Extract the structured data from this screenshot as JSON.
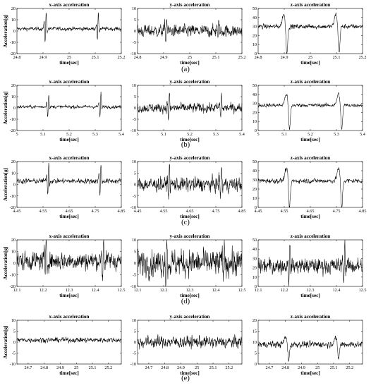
{
  "chart_data": [
    {
      "row": "(a)",
      "panels": [
        {
          "type": "line",
          "title": "x-axis acceleration",
          "xlabel": "time[sec]",
          "ylabel": "Acceleration[g]",
          "xlim": [
            24.8,
            25.2
          ],
          "ylim": [
            -20,
            20
          ],
          "xticks": [
            "24.8",
            "24.9",
            "25",
            "25.1",
            "25.2"
          ],
          "yticks": [
            "-20",
            "-10",
            "0",
            "10",
            "20"
          ],
          "series": [
            {
              "baseline": 2,
              "noise": 1.6,
              "events": [
                {
                  "x": 24.91,
                  "amp": 14
                },
                {
                  "x": 25.11,
                  "amp": 13
                }
              ]
            }
          ]
        },
        {
          "type": "line",
          "title": "y-axis acceleration",
          "xlabel": "time[sec]",
          "ylabel": "",
          "xlim": [
            24.8,
            25.2
          ],
          "ylim": [
            -10,
            10
          ],
          "xticks": [
            "24.8",
            "24.9",
            "25",
            "25.1",
            "25.2"
          ],
          "yticks": [
            "-10",
            "-5",
            "0",
            "5",
            "10"
          ],
          "series": [
            {
              "baseline": 0,
              "noise": 2.6,
              "events": [
                {
                  "x": 24.91,
                  "amp": 6
                },
                {
                  "x": 25.11,
                  "amp": 6
                }
              ]
            }
          ]
        },
        {
          "type": "line",
          "title": "z-axis acceleration",
          "xlabel": "time[sec]",
          "ylabel": "",
          "xlim": [
            24.8,
            25.2
          ],
          "ylim": [
            0,
            50
          ],
          "xticks": [
            "24.8",
            "24.9",
            "25",
            "25.1",
            "25.2"
          ],
          "yticks": [
            "0",
            "10",
            "20",
            "30",
            "40",
            "50"
          ],
          "series": [
            {
              "baseline": 30,
              "noise": 2.5,
              "events": [
                {
                  "x": 24.91,
                  "amp": 30,
                  "dip": true
                },
                {
                  "x": 25.11,
                  "amp": 30,
                  "dip": true
                }
              ]
            }
          ]
        }
      ]
    },
    {
      "row": "(b)",
      "panels": [
        {
          "type": "line",
          "title": "x-axis acceleration",
          "xlabel": "time[sec]",
          "ylabel": "Acceleration[g]",
          "xlim": [
            5,
            5.4
          ],
          "ylim": [
            -20,
            20
          ],
          "xticks": [
            "5",
            "5.1",
            "5.2",
            "5.3",
            "5.4"
          ],
          "yticks": [
            "-20",
            "-10",
            "0",
            "10",
            "20"
          ],
          "series": [
            {
              "baseline": 1,
              "noise": 1.4,
              "events": [
                {
                  "x": 5.12,
                  "amp": 12
                },
                {
                  "x": 5.32,
                  "amp": 12
                }
              ]
            }
          ]
        },
        {
          "type": "line",
          "title": "y-axis acceleration",
          "xlabel": "time[sec]",
          "ylabel": "",
          "xlim": [
            5,
            5.4
          ],
          "ylim": [
            -10,
            10
          ],
          "xticks": [
            "5",
            "5.1",
            "5.2",
            "5.3",
            "5.4"
          ],
          "yticks": [
            "-10",
            "-5",
            "0",
            "5",
            "10"
          ],
          "series": [
            {
              "baseline": 0,
              "noise": 2.0,
              "events": [
                {
                  "x": 5.12,
                  "amp": 6
                },
                {
                  "x": 5.32,
                  "amp": 6
                }
              ]
            }
          ]
        },
        {
          "type": "line",
          "title": "z-axis acceleration",
          "xlabel": "time[sec]",
          "ylabel": "",
          "xlim": [
            5,
            5.4
          ],
          "ylim": [
            0,
            50
          ],
          "xticks": [
            "5",
            "5.1",
            "5.2",
            "5.3",
            "5.4"
          ],
          "yticks": [
            "0",
            "10",
            "20",
            "30",
            "40",
            "50"
          ],
          "series": [
            {
              "baseline": 28,
              "noise": 2.0,
              "events": [
                {
                  "x": 5.12,
                  "amp": 28,
                  "dip": true
                },
                {
                  "x": 5.32,
                  "amp": 28,
                  "dip": true
                }
              ]
            }
          ]
        }
      ]
    },
    {
      "row": "(c)",
      "panels": [
        {
          "type": "line",
          "title": "x-axis acceleration",
          "xlabel": "time[sec]",
          "ylabel": "Acceleration[g]",
          "xlim": [
            4.45,
            4.85
          ],
          "ylim": [
            -20,
            20
          ],
          "xticks": [
            "4.45",
            "4.55",
            "4.65",
            "4.75",
            "4.85"
          ],
          "yticks": [
            "-20",
            "-10",
            "0",
            "10",
            "20"
          ],
          "series": [
            {
              "baseline": 3,
              "noise": 2.2,
              "events": [
                {
                  "x": 4.57,
                  "amp": 16
                },
                {
                  "x": 4.77,
                  "amp": 16
                }
              ]
            }
          ]
        },
        {
          "type": "line",
          "title": "y-axis acceleration",
          "xlabel": "time[sec]",
          "ylabel": "",
          "xlim": [
            4.45,
            4.85
          ],
          "ylim": [
            -10,
            10
          ],
          "xticks": [
            "4.45",
            "4.55",
            "4.65",
            "4.75",
            "4.85"
          ],
          "yticks": [
            "-10",
            "-5",
            "0",
            "5",
            "10"
          ],
          "series": [
            {
              "baseline": 0,
              "noise": 3.0,
              "events": [
                {
                  "x": 4.57,
                  "amp": 7
                },
                {
                  "x": 4.77,
                  "amp": 8
                }
              ]
            }
          ]
        },
        {
          "type": "line",
          "title": "z-axis acceleration",
          "xlabel": "time[sec]",
          "ylabel": "",
          "xlim": [
            4.45,
            4.85
          ],
          "ylim": [
            0,
            50
          ],
          "xticks": [
            "4.45",
            "4.55",
            "4.65",
            "4.75",
            "4.85"
          ],
          "yticks": [
            "0",
            "10",
            "20",
            "30",
            "40",
            "50"
          ],
          "series": [
            {
              "baseline": 29,
              "noise": 2.6,
              "events": [
                {
                  "x": 4.57,
                  "amp": 30,
                  "dip": true
                },
                {
                  "x": 4.77,
                  "amp": 30,
                  "dip": true
                }
              ]
            }
          ]
        }
      ]
    },
    {
      "row": "(d)",
      "panels": [
        {
          "type": "line",
          "title": "x-axis acceleration",
          "xlabel": "time[sec]",
          "ylabel": "Acceleration[g]",
          "xlim": [
            12.1,
            12.5
          ],
          "ylim": [
            -20,
            20
          ],
          "xticks": [
            "12.1",
            "12.2",
            "12.3",
            "12.4",
            "12.5"
          ],
          "yticks": [
            "-20",
            "-10",
            "0",
            "10",
            "20"
          ],
          "series": [
            {
              "baseline": 2,
              "noise": 7.5,
              "events": [
                {
                  "x": 12.21,
                  "amp": 22
                },
                {
                  "x": 12.43,
                  "amp": 22
                }
              ]
            }
          ]
        },
        {
          "type": "line",
          "title": "y-axis acceleration",
          "xlabel": "time[sec]",
          "ylabel": "",
          "xlim": [
            12.1,
            12.5
          ],
          "ylim": [
            -10,
            10
          ],
          "xticks": [
            "12.1",
            "12.2",
            "12.3",
            "12.4",
            "12.5"
          ],
          "yticks": [
            "-10",
            "-5",
            "0",
            "5",
            "10"
          ],
          "series": [
            {
              "baseline": 0,
              "noise": 5.5,
              "events": [
                {
                  "x": 12.21,
                  "amp": 10
                },
                {
                  "x": 12.43,
                  "amp": 10
                }
              ]
            }
          ]
        },
        {
          "type": "line",
          "title": "z-axis acceleration",
          "xlabel": "time[sec]",
          "ylabel": "",
          "xlim": [
            12.1,
            12.5
          ],
          "ylim": [
            0,
            50
          ],
          "xticks": [
            "12.1",
            "12.2",
            "12.3",
            "12.4",
            "12.5"
          ],
          "yticks": [
            "0",
            "10",
            "20",
            "30",
            "40",
            "50"
          ],
          "series": [
            {
              "baseline": 22,
              "noise": 8.0,
              "events": [
                {
                  "x": 12.22,
                  "amp": 26
                },
                {
                  "x": 12.43,
                  "amp": 24
                }
              ]
            }
          ]
        }
      ]
    },
    {
      "row": "(e)",
      "panels": [
        {
          "type": "line",
          "title": "x-axis acceleration",
          "xlabel": "time[sec]",
          "ylabel": "Acceleration[g]",
          "xlim": [
            24.63,
            25.28
          ],
          "ylim": [
            -10,
            10
          ],
          "xticks": [
            "24.7",
            "24.8",
            "24.9",
            "25",
            "25.1",
            "25.2"
          ],
          "yticks": [
            "-10",
            "-5",
            "0",
            "5",
            "10"
          ],
          "series": [
            {
              "baseline": 1,
              "noise": 1.1,
              "events": []
            }
          ]
        },
        {
          "type": "line",
          "title": "y-axis acceleration",
          "xlabel": "time[sec]",
          "ylabel": "",
          "xlim": [
            24.63,
            25.28
          ],
          "ylim": [
            -10,
            10
          ],
          "xticks": [
            "24.7",
            "24.8",
            "24.9",
            "25",
            "25.1",
            "25.2"
          ],
          "yticks": [
            "-10",
            "-5",
            "0",
            "5",
            "10"
          ],
          "series": [
            {
              "baseline": 0,
              "noise": 2.6,
              "events": []
            }
          ]
        },
        {
          "type": "line",
          "title": "z-axis acceleration",
          "xlabel": "time[sec]",
          "ylabel": "",
          "xlim": [
            24.63,
            25.28
          ],
          "ylim": [
            0,
            20
          ],
          "xticks": [
            "24.7",
            "24.8",
            "24.9",
            "25",
            "25.1",
            "25.2"
          ],
          "yticks": [
            "0",
            "5",
            "10",
            "15",
            "20"
          ],
          "series": [
            {
              "baseline": 9,
              "noise": 1.4,
              "events": [
                {
                  "x": 24.82,
                  "amp": 7,
                  "dip": true
                },
                {
                  "x": 25.13,
                  "amp": 7,
                  "dip": true
                }
              ]
            }
          ]
        }
      ]
    }
  ]
}
